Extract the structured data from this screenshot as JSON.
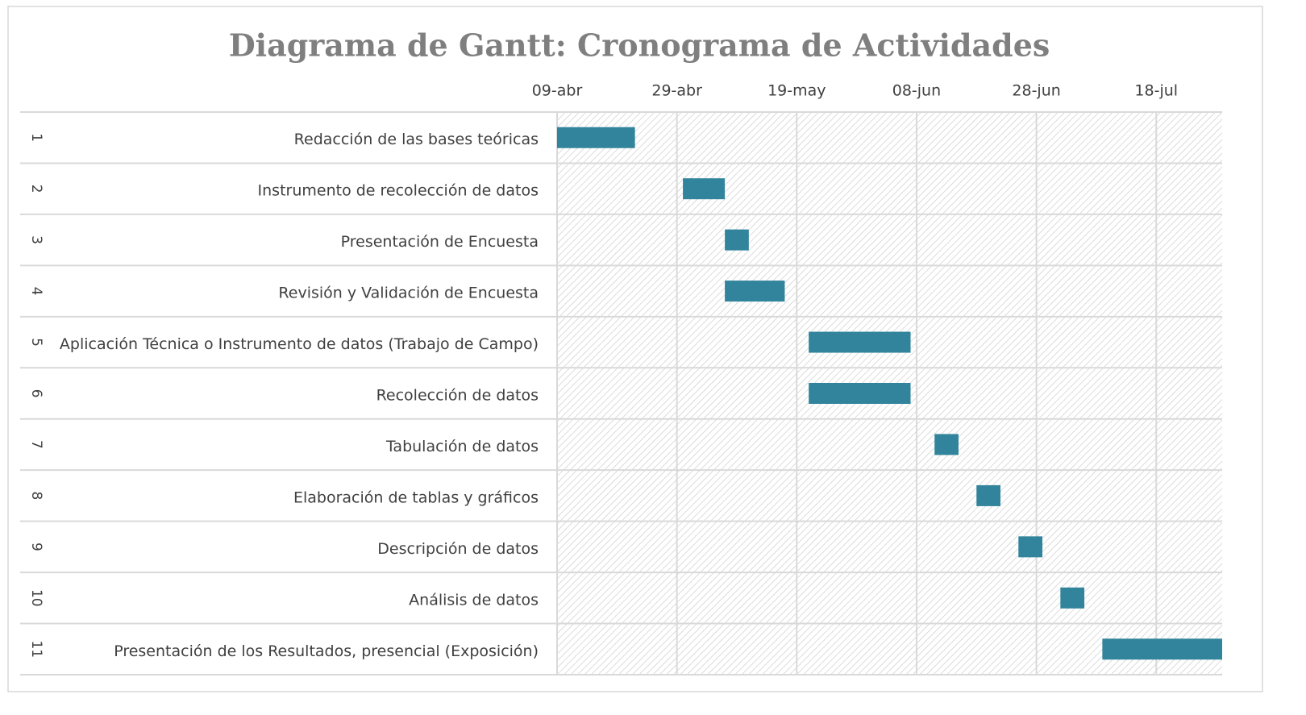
{
  "chart_data": {
    "type": "gantt",
    "title": "Diagrama de Gantt: Cronograma de Actividades",
    "row_labels": [
      "1",
      "2",
      "3",
      "4",
      "5",
      "6",
      "7",
      "8",
      "9",
      "10",
      "11"
    ],
    "categories": [
      "Redacción de las bases teóricas",
      "Instrumento de recolección de datos",
      "Presentación de Encuesta",
      "Revisión y Validación de Encuesta",
      "Aplicación Técnica o Instrumento de datos (Trabajo de Campo)",
      "Recolección de datos",
      "Tabulación de datos",
      "Elaboración de tablas y gráficos",
      "Descripción de datos",
      "Análisis de datos",
      "Presentación de los Resultados, presencial (Exposición)"
    ],
    "start": [
      "04-09",
      "04-30",
      "05-07",
      "05-07",
      "05-21",
      "05-21",
      "06-11",
      "06-18",
      "06-25",
      "07-02",
      "07-09"
    ],
    "values": [
      13,
      7,
      4,
      10,
      17,
      17,
      4,
      4,
      4,
      4,
      20
    ],
    "color": "#31849b",
    "xlim": [
      "04-09",
      "07-29"
    ],
    "xticks": [
      {
        "value": "04-09",
        "label": "09-abr"
      },
      {
        "value": "04-29",
        "label": "29-abr"
      },
      {
        "value": "05-19",
        "label": "19-may"
      },
      {
        "value": "06-08",
        "label": "08-jun"
      },
      {
        "value": "06-28",
        "label": "28-jun"
      },
      {
        "value": "07-18",
        "label": "18-jul"
      }
    ],
    "grid": true
  }
}
